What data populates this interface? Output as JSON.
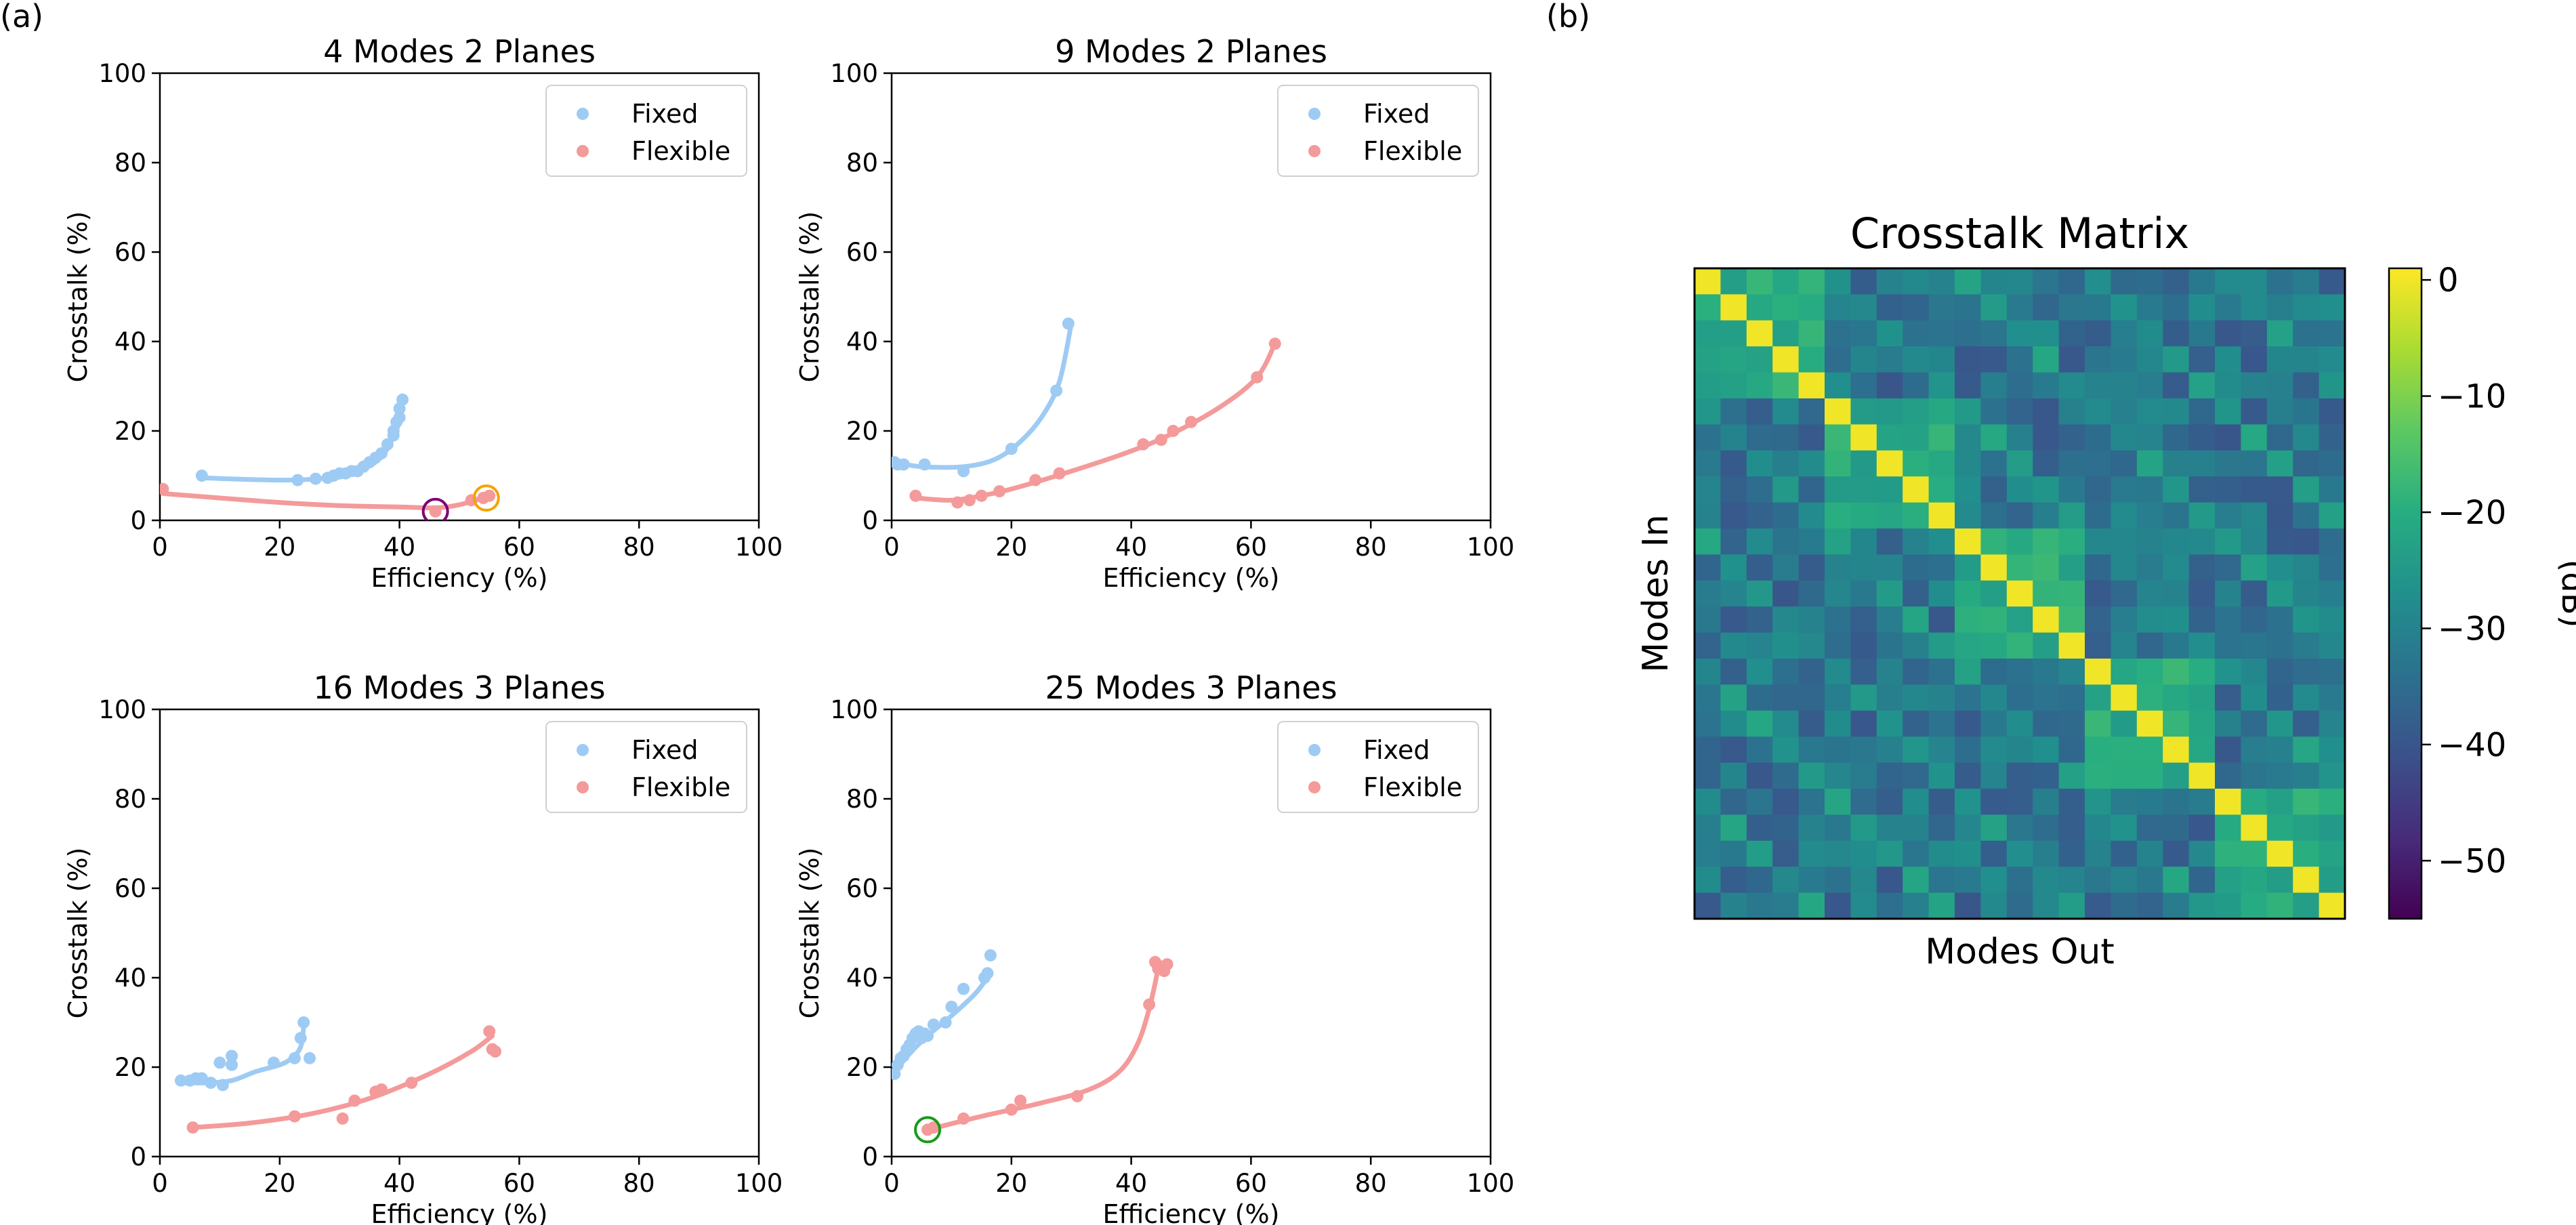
{
  "panel_labels": {
    "a": "(a)",
    "b": "(b)"
  },
  "colors": {
    "fixed": "#9ecbf4",
    "flexible": "#f49a9a",
    "purple_marker": "#7b0077",
    "orange_marker": "#f5a300",
    "green_marker": "#1a9a1a"
  },
  "chart_data": [
    {
      "type": "scatter",
      "title": "4 Modes 2 Planes",
      "xlabel": "Efficiency (%)",
      "ylabel": "Crosstalk (%)",
      "xlim": [
        0,
        100
      ],
      "ylim": [
        0,
        100
      ],
      "xticks": [
        0,
        20,
        40,
        60,
        80,
        100
      ],
      "yticks": [
        0,
        20,
        40,
        60,
        80,
        100
      ],
      "legend": "top-right",
      "series": [
        {
          "name": "Fixed",
          "color": "#9ecbf4",
          "points": [
            [
              7,
              10
            ],
            [
              23,
              9
            ],
            [
              26,
              9.3
            ],
            [
              28,
              9.5
            ],
            [
              29,
              10
            ],
            [
              30,
              10.5
            ],
            [
              31,
              10.5
            ],
            [
              32,
              11
            ],
            [
              33,
              11
            ],
            [
              34,
              12
            ],
            [
              35,
              13
            ],
            [
              36,
              14
            ],
            [
              37,
              15
            ],
            [
              38,
              17
            ],
            [
              39,
              19
            ],
            [
              39,
              20
            ],
            [
              39.5,
              22
            ],
            [
              40,
              23
            ],
            [
              40,
              25
            ],
            [
              40.5,
              27
            ]
          ],
          "curve": [
            [
              7,
              9.5
            ],
            [
              20,
              9
            ],
            [
              28,
              9.5
            ],
            [
              33,
              11
            ],
            [
              36,
              13
            ],
            [
              38,
              16
            ],
            [
              39,
              19
            ],
            [
              40,
              22
            ],
            [
              40.5,
              26
            ]
          ]
        },
        {
          "name": "Flexible",
          "color": "#f49a9a",
          "points": [
            [
              0.5,
              7
            ],
            [
              46,
              2
            ],
            [
              52,
              4.5
            ],
            [
              54,
              5
            ],
            [
              55,
              5.5
            ]
          ],
          "curve": [
            [
              0.5,
              6
            ],
            [
              10,
              5
            ],
            [
              20,
              4
            ],
            [
              30,
              3.3
            ],
            [
              40,
              3
            ],
            [
              46,
              2.8
            ],
            [
              50,
              3.5
            ],
            [
              54,
              5
            ],
            [
              55,
              5.5
            ]
          ]
        }
      ],
      "highlights": [
        {
          "x": 46,
          "y": 2,
          "color": "#7b0077"
        },
        {
          "x": 54.5,
          "y": 5,
          "color": "#f5a300"
        }
      ]
    },
    {
      "type": "scatter",
      "title": "9 Modes 2 Planes",
      "xlabel": "Efficiency (%)",
      "ylabel": "Crosstalk (%)",
      "xlim": [
        0,
        100
      ],
      "ylim": [
        0,
        100
      ],
      "xticks": [
        0,
        20,
        40,
        60,
        80,
        100
      ],
      "yticks": [
        0,
        20,
        40,
        60,
        80,
        100
      ],
      "legend": "top-right",
      "series": [
        {
          "name": "Fixed",
          "color": "#9ecbf4",
          "points": [
            [
              0.5,
              13
            ],
            [
              1,
              12.5
            ],
            [
              2,
              12.5
            ],
            [
              5.5,
              12.5
            ],
            [
              12,
              11
            ],
            [
              20,
              16
            ],
            [
              27.5,
              29
            ],
            [
              29.5,
              44
            ]
          ],
          "curve": [
            [
              0.5,
              13
            ],
            [
              5,
              12
            ],
            [
              12,
              12
            ],
            [
              17,
              13.5
            ],
            [
              21,
              17
            ],
            [
              25,
              23
            ],
            [
              28,
              31
            ],
            [
              30,
              44
            ]
          ]
        },
        {
          "name": "Flexible",
          "color": "#f49a9a",
          "points": [
            [
              4,
              5.5
            ],
            [
              11,
              4
            ],
            [
              13,
              4.5
            ],
            [
              15,
              5.5
            ],
            [
              18,
              6.5
            ],
            [
              24,
              9
            ],
            [
              28,
              10.5
            ],
            [
              42,
              17
            ],
            [
              45,
              18
            ],
            [
              47,
              20
            ],
            [
              50,
              22
            ],
            [
              61,
              32
            ],
            [
              64,
              39.5
            ]
          ],
          "curve": [
            [
              4,
              5
            ],
            [
              10,
              4.5
            ],
            [
              15,
              5.5
            ],
            [
              20,
              7
            ],
            [
              30,
              11
            ],
            [
              40,
              15.5
            ],
            [
              47,
              19.5
            ],
            [
              55,
              25.5
            ],
            [
              61,
              32
            ],
            [
              64,
              39.5
            ]
          ]
        }
      ],
      "highlights": []
    },
    {
      "type": "scatter",
      "title": "16 Modes 3 Planes",
      "xlabel": "Efficiency (%)",
      "ylabel": "Crosstalk (%)",
      "xlim": [
        0,
        100
      ],
      "ylim": [
        0,
        100
      ],
      "xticks": [
        0,
        20,
        40,
        60,
        80,
        100
      ],
      "yticks": [
        0,
        20,
        40,
        60,
        80,
        100
      ],
      "legend": "top-right",
      "series": [
        {
          "name": "Fixed",
          "color": "#9ecbf4",
          "points": [
            [
              3.5,
              17
            ],
            [
              5,
              17
            ],
            [
              6,
              17.5
            ],
            [
              7,
              17.5
            ],
            [
              8.5,
              16.5
            ],
            [
              10,
              21
            ],
            [
              10.5,
              16
            ],
            [
              12,
              20.5
            ],
            [
              12,
              22.5
            ],
            [
              19,
              21
            ],
            [
              22.5,
              22
            ],
            [
              23.5,
              26.5
            ],
            [
              24,
              30
            ],
            [
              25,
              22
            ]
          ],
          "curve": [
            [
              3.5,
              16.5
            ],
            [
              8,
              16.5
            ],
            [
              12,
              17
            ],
            [
              16,
              19
            ],
            [
              20,
              20.5
            ],
            [
              22,
              22
            ],
            [
              23.5,
              24.5
            ],
            [
              24,
              29
            ]
          ]
        },
        {
          "name": "Flexible",
          "color": "#f49a9a",
          "points": [
            [
              5.5,
              6.5
            ],
            [
              22.5,
              9
            ],
            [
              30.5,
              8.5
            ],
            [
              32.5,
              12.5
            ],
            [
              36,
              14.5
            ],
            [
              37,
              15
            ],
            [
              42,
              16.5
            ],
            [
              55,
              28
            ],
            [
              55.5,
              24
            ],
            [
              56,
              23.5
            ]
          ],
          "curve": [
            [
              5.5,
              6.5
            ],
            [
              15,
              7.5
            ],
            [
              25,
              9.5
            ],
            [
              35,
              13
            ],
            [
              45,
              18.5
            ],
            [
              52,
              23.5
            ],
            [
              55.5,
              27
            ]
          ]
        }
      ],
      "highlights": []
    },
    {
      "type": "scatter",
      "title": "25 Modes 3 Planes",
      "xlabel": "Efficiency (%)",
      "ylabel": "Crosstalk (%)",
      "xlim": [
        0,
        100
      ],
      "ylim": [
        0,
        100
      ],
      "xticks": [
        0,
        20,
        40,
        60,
        80,
        100
      ],
      "yticks": [
        0,
        20,
        40,
        60,
        80,
        100
      ],
      "legend": "top-right",
      "series": [
        {
          "name": "Fixed",
          "color": "#9ecbf4",
          "points": [
            [
              0.5,
              18.5
            ],
            [
              1,
              20.5
            ],
            [
              1.5,
              22
            ],
            [
              2,
              22.5
            ],
            [
              2.5,
              24
            ],
            [
              3,
              25
            ],
            [
              3.5,
              26.5
            ],
            [
              4,
              27.5
            ],
            [
              4.5,
              28
            ],
            [
              5,
              26.5
            ],
            [
              5.5,
              27.5
            ],
            [
              6,
              27
            ],
            [
              7,
              29.5
            ],
            [
              9,
              30
            ],
            [
              10,
              33.5
            ],
            [
              12,
              37.5
            ],
            [
              15.5,
              40
            ],
            [
              16,
              41
            ],
            [
              16.5,
              45
            ]
          ],
          "curve": [
            [
              0.5,
              19
            ],
            [
              3,
              23
            ],
            [
              6,
              27
            ],
            [
              10,
              31.5
            ],
            [
              14,
              36.5
            ],
            [
              16.5,
              41
            ]
          ]
        },
        {
          "name": "Flexible",
          "color": "#f49a9a",
          "points": [
            [
              6,
              6
            ],
            [
              7,
              6.5
            ],
            [
              12,
              8.5
            ],
            [
              20,
              10.5
            ],
            [
              21.5,
              12.5
            ],
            [
              31,
              13.5
            ],
            [
              43,
              34
            ],
            [
              44,
              43.5
            ],
            [
              44.5,
              42
            ],
            [
              45,
              42.5
            ],
            [
              45.5,
              41.5
            ],
            [
              46,
              43
            ]
          ],
          "curve": [
            [
              6,
              6
            ],
            [
              15,
              9
            ],
            [
              25,
              12
            ],
            [
              33,
              15
            ],
            [
              38,
              19
            ],
            [
              41,
              25
            ],
            [
              43,
              33
            ],
            [
              44.5,
              42
            ]
          ]
        }
      ],
      "highlights": [
        {
          "x": 6,
          "y": 6,
          "color": "#1a9a1a"
        }
      ]
    },
    {
      "type": "heatmap",
      "title": "Crosstalk Matrix",
      "xlabel": "Modes Out",
      "ylabel": "Modes In",
      "colorbar_label": "(dB)",
      "size": 25,
      "range": [
        -55,
        1
      ],
      "colorbar_ticks": [
        0,
        -10,
        -20,
        -30,
        -40,
        -50
      ],
      "colorbar_tick_labels": [
        "0",
        "−10",
        "−20",
        "−30",
        "−40",
        "−50"
      ],
      "diagonal_db": 0,
      "structure": "5x5 block structure: bright yellow diagonal near 0 dB, brighter green off-diagonals within blocks (about −18 to −22 dB), teal-blue background (about −28 to −40 dB)"
    }
  ]
}
